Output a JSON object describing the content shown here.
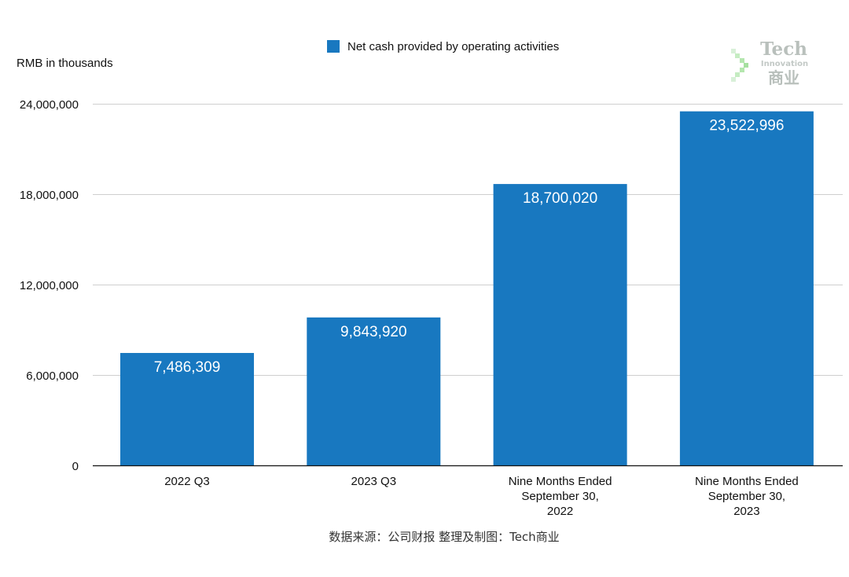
{
  "chart_data": {
    "type": "bar",
    "unit_label": "RMB in thousands",
    "categories": [
      "2022 Q3",
      "2023 Q3",
      "Nine Months Ended\nSeptember 30,\n2022",
      "Nine Months Ended\nSeptember 30,\n2023"
    ],
    "series": [
      {
        "name": "Net cash provided by operating activities",
        "color": "#1878c0",
        "values": [
          7486309,
          9843920,
          18700020,
          23522996
        ],
        "value_labels": [
          "7,486,309",
          "9,843,920",
          "18,700,020",
          "23,522,996"
        ]
      }
    ],
    "ylim": [
      0,
      24000000
    ],
    "yticks": [
      0,
      6000000,
      12000000,
      18000000,
      24000000
    ],
    "ytick_labels": [
      "0",
      "6,000,000",
      "12,000,000",
      "18,000,000",
      "24,000,000"
    ],
    "grid": true,
    "legend_position": "top-center",
    "source_note": "数据来源：公司财报 整理及制图：Tech商业"
  },
  "watermark": {
    "line1": "Tech",
    "line2": "Innovation",
    "line3": "商业",
    "icon": "chevron-logo-icon"
  }
}
